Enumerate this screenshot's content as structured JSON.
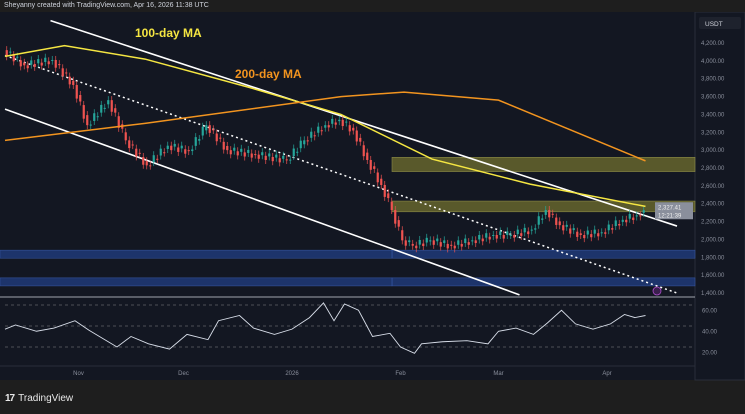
{
  "header": {
    "credit": "Sheyanny created with TradingView.com, Apr 16, 2026 11:38 UTC"
  },
  "footer": {
    "brand": "TradingView",
    "logo_icon": "tradingview-logo-icon"
  },
  "colors": {
    "bg": "#131722",
    "up": "#26a69a",
    "down": "#ef5350",
    "ma100": "#f5e642",
    "ma200": "#f2941f",
    "supply_zone": "#6b6a2e",
    "demand_zone": "#1f3a78",
    "rsi": "#d8dee9"
  },
  "chart_data": {
    "type": "candlestick",
    "currency": "USDT",
    "annotations": {
      "ma100_label": "100-day MA",
      "ma200_label": "200-day MA"
    },
    "price_axis": {
      "ticks": [
        "4,200.00",
        "4,000.00",
        "3,800.00",
        "3,600.00",
        "3,400.00",
        "3,200.00",
        "3,000.00",
        "2,800.00",
        "2,600.00",
        "2,400.00",
        "2,200.00",
        "2,000.00",
        "1,800.00",
        "1,600.00",
        "1,400.00"
      ],
      "range": [
        1400,
        4200
      ]
    },
    "last_price": "2,327.41",
    "countdown": "12:21:39",
    "time_axis": [
      "Nov",
      "Dec",
      "2026",
      "Feb",
      "Mar",
      "Apr"
    ],
    "closes": [
      [
        "2025-10-11",
        4120
      ],
      [
        "2025-10-17",
        3950
      ],
      [
        "2025-10-25",
        4010
      ],
      [
        "2025-10-31",
        3730
      ],
      [
        "2025-11-04",
        3280
      ],
      [
        "2025-11-10",
        3560
      ],
      [
        "2025-11-15",
        3110
      ],
      [
        "2025-11-21",
        2830
      ],
      [
        "2025-11-27",
        3050
      ],
      [
        "2025-12-03",
        2990
      ],
      [
        "2025-12-08",
        3280
      ],
      [
        "2025-12-14",
        3000
      ],
      [
        "2025-12-22",
        2950
      ],
      [
        "2025-12-31",
        2890
      ],
      [
        "2026-01-05",
        3110
      ],
      [
        "2026-01-11",
        3280
      ],
      [
        "2026-01-15",
        3340
      ],
      [
        "2026-01-19",
        3220
      ],
      [
        "2026-01-23",
        2890
      ],
      [
        "2026-01-27",
        2610
      ],
      [
        "2026-01-30",
        2330
      ],
      [
        "2026-02-02",
        1990
      ],
      [
        "2026-02-05",
        1930
      ],
      [
        "2026-02-10",
        1990
      ],
      [
        "2026-02-16",
        1930
      ],
      [
        "2026-02-22",
        1990
      ],
      [
        "2026-02-28",
        2050
      ],
      [
        "2026-03-05",
        2050
      ],
      [
        "2026-03-11",
        2110
      ],
      [
        "2026-03-15",
        2330
      ],
      [
        "2026-03-19",
        2160
      ],
      [
        "2026-03-25",
        2050
      ],
      [
        "2026-03-31",
        2080
      ],
      [
        "2026-04-06",
        2220
      ],
      [
        "2026-04-10",
        2270
      ],
      [
        "2026-04-12",
        2327
      ]
    ],
    "ma100": [
      [
        "2025-10-11",
        4050
      ],
      [
        "2025-10-28",
        4170
      ],
      [
        "2025-11-20",
        4020
      ],
      [
        "2025-12-20",
        3700
      ],
      [
        "2026-01-15",
        3400
      ],
      [
        "2026-02-10",
        2900
      ],
      [
        "2026-03-10",
        2620
      ],
      [
        "2026-04-12",
        2370
      ]
    ],
    "ma200": [
      [
        "2025-10-11",
        3110
      ],
      [
        "2025-11-20",
        3300
      ],
      [
        "2026-01-15",
        3600
      ],
      [
        "2026-02-02",
        3650
      ],
      [
        "2026-03-01",
        3560
      ],
      [
        "2026-04-12",
        2880
      ]
    ],
    "zones": [
      {
        "type": "supply",
        "from": 2760,
        "to": 2920
      },
      {
        "type": "supply",
        "from": 2310,
        "to": 2430
      },
      {
        "type": "demand",
        "from": 1790,
        "to": 1880
      },
      {
        "type": "demand",
        "from": 1480,
        "to": 1570
      }
    ],
    "channel": {
      "upper": [
        [
          "2025-10-24",
          4450
        ],
        [
          "2026-04-21",
          2150
        ]
      ],
      "lower": [
        [
          "2025-10-11",
          3460
        ],
        [
          "2026-03-07",
          1380
        ]
      ],
      "mid_dotted": [
        [
          "2025-10-11",
          4060
        ],
        [
          "2026-04-21",
          1400
        ]
      ]
    },
    "rsi": {
      "axis": [
        "60.00",
        "40.00",
        "20.00"
      ],
      "levels": [
        70,
        50,
        30
      ],
      "values": [
        [
          "2025-10-11",
          47
        ],
        [
          "2025-10-14",
          51
        ],
        [
          "2025-10-20",
          45
        ],
        [
          "2025-10-25",
          48
        ],
        [
          "2025-10-31",
          55
        ],
        [
          "2025-11-04",
          46
        ],
        [
          "2025-11-08",
          38
        ],
        [
          "2025-11-12",
          30
        ],
        [
          "2025-11-16",
          40
        ],
        [
          "2025-11-21",
          33
        ],
        [
          "2025-11-27",
          28
        ],
        [
          "2025-12-02",
          42
        ],
        [
          "2025-12-08",
          37
        ],
        [
          "2025-12-11",
          55
        ],
        [
          "2025-12-17",
          60
        ],
        [
          "2025-12-21",
          48
        ],
        [
          "2025-12-27",
          42
        ],
        [
          "2026-01-01",
          47
        ],
        [
          "2026-01-06",
          58
        ],
        [
          "2026-01-10",
          72
        ],
        [
          "2026-01-13",
          55
        ],
        [
          "2026-01-16",
          71
        ],
        [
          "2026-01-20",
          65
        ],
        [
          "2026-01-24",
          40
        ],
        [
          "2026-01-29",
          43
        ],
        [
          "2026-02-01",
          30
        ],
        [
          "2026-02-05",
          24
        ],
        [
          "2026-02-07",
          33
        ],
        [
          "2026-02-13",
          35
        ],
        [
          "2026-02-20",
          36
        ],
        [
          "2026-02-26",
          33
        ],
        [
          "2026-03-01",
          45
        ],
        [
          "2026-03-06",
          48
        ],
        [
          "2026-03-11",
          42
        ],
        [
          "2026-03-15",
          53
        ],
        [
          "2026-03-19",
          65
        ],
        [
          "2026-03-23",
          52
        ],
        [
          "2026-03-28",
          47
        ],
        [
          "2026-04-02",
          52
        ],
        [
          "2026-04-06",
          61
        ],
        [
          "2026-04-09",
          58
        ],
        [
          "2026-04-12",
          60
        ]
      ]
    }
  }
}
